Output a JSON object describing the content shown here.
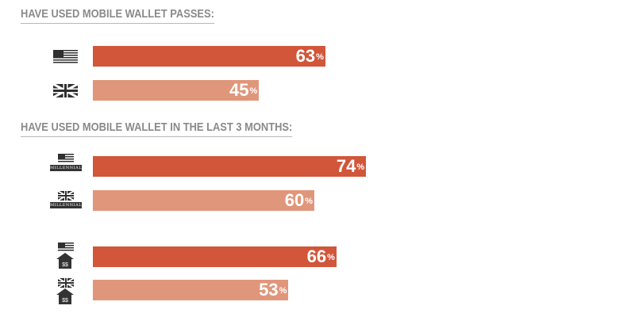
{
  "sections": [
    {
      "title": "HAVE USED MOBILE WALLET PASSES:"
    },
    {
      "title": "HAVE USED MOBILE WALLET IN THE LAST 3 MONTHS:"
    }
  ],
  "bars": [
    {
      "value": "63",
      "unit": "%",
      "country": "US"
    },
    {
      "value": "45",
      "unit": "%",
      "country": "UK"
    },
    {
      "value": "74",
      "unit": "%",
      "country": "US",
      "badge": "MILLENNIALS"
    },
    {
      "value": "60",
      "unit": "%",
      "country": "UK",
      "badge": "MILLENNIALS"
    },
    {
      "value": "66",
      "unit": "%",
      "country": "US",
      "badge_icon": "house-dollar-icon"
    },
    {
      "value": "53",
      "unit": "%",
      "country": "UK",
      "badge_icon": "house-dollar-icon"
    }
  ],
  "house_label": "$$",
  "colors": {
    "us": "#d1563a",
    "uk": "#e0967b",
    "title": "#8a8a8a",
    "icon": "#2f2f2f"
  },
  "chart_data": {
    "type": "bar",
    "orientation": "horizontal",
    "categories": [
      "US",
      "UK",
      "US Millennials",
      "UK Millennials",
      "US (house $$)",
      "UK (house $$)"
    ],
    "values": [
      63,
      45,
      74,
      60,
      66,
      53
    ],
    "groups": [
      {
        "title": "HAVE USED MOBILE WALLET PASSES:",
        "values": [
          63,
          45
        ]
      },
      {
        "title": "HAVE USED MOBILE WALLET IN THE LAST 3 MONTHS:",
        "values": [
          74,
          60,
          66,
          53
        ]
      }
    ],
    "value_suffix": "%",
    "grid": false
  }
}
